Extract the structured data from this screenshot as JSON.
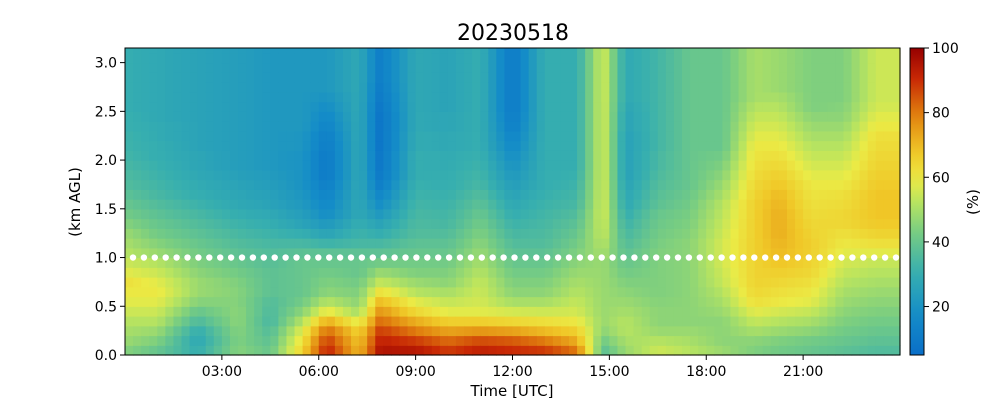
{
  "chart_data": {
    "type": "heatmap",
    "title": "20230518",
    "xlabel": "Time [UTC]",
    "ylabel": "(km AGL)",
    "xlim": [
      0,
      24
    ],
    "ylim": [
      0,
      3.15
    ],
    "x_tick_labels": [
      "03:00",
      "06:00",
      "09:00",
      "12:00",
      "15:00",
      "18:00",
      "21:00"
    ],
    "x_ticks": [
      3,
      6,
      9,
      12,
      15,
      18,
      21
    ],
    "y_ticks": [
      0,
      0.5,
      1.0,
      1.5,
      2.0,
      2.5,
      3.0
    ],
    "y_tick_labels": [
      "0.0",
      "0.5",
      "1.0",
      "1.5",
      "2.0",
      "2.5",
      "3.0"
    ],
    "colorbar": {
      "label": "(%)",
      "range": [
        5,
        100
      ],
      "ticks": [
        20,
        40,
        60,
        80,
        100
      ],
      "tick_labels": [
        "20",
        "40",
        "60",
        "80",
        "100"
      ],
      "colormap": "blue-green-yellow-red (jet-like)"
    },
    "grid": false,
    "y_levels_km": [
      0.0,
      0.1,
      0.2,
      0.3,
      0.4,
      0.5,
      0.6,
      0.7,
      0.8,
      0.9,
      1.0,
      1.1,
      1.2,
      1.3,
      1.4,
      1.5,
      1.6,
      1.7,
      1.8,
      1.9,
      2.0,
      2.1,
      2.2,
      2.3,
      2.4,
      2.5,
      2.6,
      2.7,
      2.8,
      2.9,
      3.0,
      3.1
    ],
    "reference_line": {
      "y": 1.0,
      "style": "white dotted"
    },
    "time_profiles": [
      {
        "x": 0.0,
        "profile": [
          45,
          48,
          50,
          52,
          55,
          58,
          60,
          62,
          58,
          55,
          52,
          50,
          48,
          45,
          42,
          40,
          38,
          36,
          35,
          34,
          33,
          32,
          32,
          31,
          31,
          30,
          30,
          30,
          30,
          30,
          30,
          30
        ]
      },
      {
        "x": 1.0,
        "profile": [
          40,
          44,
          48,
          52,
          55,
          58,
          60,
          58,
          55,
          52,
          48,
          45,
          42,
          40,
          38,
          36,
          34,
          33,
          32,
          31,
          30,
          30,
          29,
          29,
          28,
          28,
          28,
          28,
          28,
          28,
          28,
          28
        ]
      },
      {
        "x": 2.25,
        "profile": [
          30,
          28,
          30,
          35,
          40,
          45,
          48,
          48,
          46,
          44,
          42,
          40,
          38,
          36,
          34,
          32,
          30,
          29,
          28,
          27,
          27,
          26,
          26,
          26,
          26,
          26,
          26,
          26,
          26,
          26,
          26,
          26
        ]
      },
      {
        "x": 3.5,
        "profile": [
          45,
          44,
          45,
          46,
          46,
          45,
          45,
          44,
          42,
          40,
          38,
          36,
          34,
          32,
          30,
          28,
          27,
          26,
          25,
          24,
          24,
          24,
          24,
          24,
          24,
          24,
          24,
          24,
          24,
          24,
          24,
          24
        ]
      },
      {
        "x": 4.5,
        "profile": [
          40,
          38,
          36,
          34,
          35,
          36,
          38,
          38,
          38,
          37,
          36,
          34,
          32,
          30,
          28,
          26,
          25,
          24,
          23,
          22,
          22,
          22,
          22,
          22,
          22,
          22,
          22,
          22,
          22,
          22,
          22,
          22
        ]
      },
      {
        "x": 5.5,
        "profile": [
          65,
          62,
          58,
          52,
          46,
          42,
          40,
          40,
          40,
          40,
          38,
          34,
          30,
          26,
          24,
          22,
          21,
          20,
          20,
          20,
          20,
          21,
          21,
          22,
          22,
          22,
          22,
          22,
          22,
          22,
          22,
          22
        ]
      },
      {
        "x": 6.25,
        "profile": [
          92,
          88,
          82,
          72,
          60,
          52,
          46,
          44,
          42,
          40,
          38,
          32,
          26,
          22,
          18,
          16,
          14,
          12,
          10,
          10,
          10,
          11,
          12,
          14,
          16,
          18,
          20,
          22,
          22,
          22,
          22,
          22
        ]
      },
      {
        "x": 7.25,
        "profile": [
          70,
          68,
          65,
          58,
          50,
          46,
          44,
          42,
          40,
          40,
          38,
          34,
          32,
          30,
          28,
          28,
          28,
          28,
          28,
          28,
          28,
          28,
          28,
          28,
          28,
          28,
          28,
          28,
          28,
          28,
          28,
          28
        ]
      },
      {
        "x": 7.9,
        "profile": [
          95,
          92,
          88,
          82,
          76,
          70,
          62,
          54,
          48,
          42,
          38,
          34,
          30,
          26,
          22,
          18,
          15,
          12,
          10,
          9,
          9,
          8,
          8,
          8,
          8,
          9,
          10,
          11,
          12,
          12,
          12,
          12
        ]
      },
      {
        "x": 9.0,
        "profile": [
          94,
          88,
          80,
          72,
          64,
          58,
          52,
          48,
          44,
          42,
          40,
          38,
          36,
          35,
          34,
          33,
          32,
          31,
          30,
          30,
          30,
          29,
          29,
          28,
          28,
          28,
          28,
          28,
          28,
          28,
          28,
          28
        ]
      },
      {
        "x": 10.0,
        "profile": [
          88,
          82,
          74,
          66,
          58,
          54,
          50,
          46,
          44,
          42,
          40,
          38,
          36,
          34,
          33,
          32,
          31,
          30,
          30,
          29,
          29,
          28,
          28,
          27,
          27,
          26,
          26,
          26,
          26,
          26,
          26,
          26
        ]
      },
      {
        "x": 11.0,
        "profile": [
          92,
          86,
          76,
          66,
          58,
          56,
          55,
          54,
          52,
          50,
          48,
          46,
          44,
          42,
          40,
          38,
          36,
          34,
          33,
          32,
          31,
          30,
          30,
          30,
          30,
          30,
          30,
          30,
          30,
          30,
          30,
          30
        ]
      },
      {
        "x": 12.0,
        "profile": [
          90,
          84,
          74,
          64,
          56,
          50,
          46,
          44,
          42,
          40,
          38,
          36,
          34,
          32,
          30,
          28,
          26,
          24,
          22,
          20,
          18,
          16,
          14,
          12,
          11,
          10,
          10,
          10,
          10,
          10,
          10,
          10
        ]
      },
      {
        "x": 13.0,
        "profile": [
          88,
          80,
          70,
          62,
          55,
          50,
          46,
          44,
          42,
          40,
          38,
          36,
          35,
          34,
          33,
          32,
          31,
          30,
          30,
          30,
          30,
          30,
          30,
          30,
          30,
          30,
          30,
          30,
          30,
          30,
          30,
          30
        ]
      },
      {
        "x": 14.0,
        "profile": [
          80,
          72,
          66,
          60,
          56,
          54,
          52,
          50,
          48,
          46,
          44,
          42,
          40,
          38,
          36,
          34,
          33,
          32,
          31,
          30,
          30,
          30,
          30,
          30,
          30,
          30,
          30,
          30,
          30,
          30,
          30,
          30
        ]
      },
      {
        "x": 14.8,
        "profile": [
          38,
          42,
          46,
          48,
          48,
          48,
          48,
          48,
          48,
          48,
          50,
          52,
          54,
          55,
          56,
          56,
          56,
          56,
          56,
          56,
          56,
          56,
          56,
          56,
          56,
          56,
          56,
          56,
          56,
          56,
          56,
          56
        ]
      },
      {
        "x": 15.5,
        "profile": [
          48,
          50,
          52,
          52,
          50,
          48,
          46,
          44,
          42,
          40,
          38,
          36,
          34,
          32,
          30,
          28,
          27,
          26,
          25,
          25,
          25,
          25,
          25,
          26,
          26,
          27,
          28,
          28,
          28,
          28,
          28,
          28
        ]
      },
      {
        "x": 16.5,
        "profile": [
          55,
          52,
          48,
          46,
          46,
          45,
          44,
          44,
          44,
          44,
          44,
          43,
          42,
          41,
          40,
          38,
          37,
          36,
          35,
          34,
          34,
          33,
          33,
          33,
          33,
          33,
          33,
          33,
          33,
          33,
          33,
          33
        ]
      },
      {
        "x": 17.5,
        "profile": [
          52,
          50,
          48,
          46,
          46,
          46,
          46,
          46,
          46,
          46,
          46,
          46,
          45,
          44,
          43,
          42,
          41,
          40,
          40,
          40,
          40,
          40,
          40,
          40,
          40,
          40,
          40,
          40,
          40,
          40,
          40,
          40
        ]
      },
      {
        "x": 18.5,
        "profile": [
          48,
          46,
          46,
          46,
          48,
          50,
          52,
          54,
          55,
          56,
          56,
          56,
          55,
          54,
          53,
          52,
          50,
          48,
          46,
          44,
          42,
          40,
          40,
          40,
          40,
          40,
          40,
          40,
          40,
          40,
          40,
          40
        ]
      },
      {
        "x": 19.5,
        "profile": [
          44,
          46,
          50,
          54,
          58,
          62,
          64,
          65,
          65,
          65,
          66,
          66,
          66,
          66,
          66,
          66,
          65,
          64,
          63,
          62,
          61,
          60,
          58,
          56,
          54,
          52,
          50,
          50,
          50,
          50,
          50,
          50
        ]
      },
      {
        "x": 20.25,
        "profile": [
          42,
          44,
          48,
          52,
          56,
          60,
          62,
          64,
          66,
          68,
          70,
          71,
          72,
          72,
          72,
          71,
          70,
          68,
          66,
          64,
          62,
          60,
          58,
          56,
          54,
          52,
          50,
          48,
          48,
          48,
          48,
          48
        ]
      },
      {
        "x": 21.25,
        "profile": [
          40,
          42,
          46,
          50,
          54,
          58,
          60,
          62,
          64,
          65,
          66,
          66,
          65,
          64,
          63,
          62,
          61,
          60,
          58,
          56,
          54,
          52,
          50,
          48,
          46,
          44,
          44,
          44,
          44,
          44,
          44,
          44
        ]
      },
      {
        "x": 22.25,
        "profile": [
          38,
          40,
          42,
          44,
          46,
          48,
          50,
          52,
          54,
          56,
          58,
          60,
          62,
          64,
          64,
          63,
          62,
          60,
          58,
          56,
          54,
          52,
          50,
          48,
          46,
          45,
          44,
          44,
          44,
          44,
          44,
          44
        ]
      },
      {
        "x": 23.25,
        "profile": [
          36,
          38,
          40,
          42,
          44,
          46,
          48,
          50,
          52,
          54,
          58,
          62,
          65,
          67,
          68,
          68,
          68,
          67,
          66,
          65,
          64,
          63,
          62,
          60,
          58,
          56,
          55,
          55,
          55,
          55,
          55,
          55
        ]
      },
      {
        "x": 24.0,
        "profile": [
          36,
          38,
          40,
          42,
          44,
          46,
          48,
          50,
          52,
          54,
          58,
          62,
          65,
          67,
          68,
          68,
          68,
          67,
          66,
          65,
          64,
          63,
          62,
          60,
          58,
          56,
          55,
          55,
          55,
          55,
          55,
          55
        ]
      }
    ]
  }
}
